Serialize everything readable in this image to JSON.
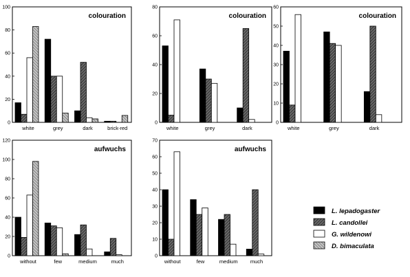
{
  "chart_data": [
    {
      "type": "bar",
      "title": "colouration",
      "categories": [
        "white",
        "grey",
        "dark",
        "brick-red"
      ],
      "ylim": [
        0,
        100
      ],
      "yticks": [
        0,
        20,
        40,
        60,
        80,
        100
      ],
      "series": [
        {
          "name": "L. lepadogaster",
          "values": [
            17,
            72,
            10,
            1
          ]
        },
        {
          "name": "L. candollei",
          "values": [
            7,
            40,
            52,
            1
          ]
        },
        {
          "name": "G. wildenowi",
          "values": [
            56,
            40,
            4,
            0
          ]
        },
        {
          "name": "D. bimaculata",
          "values": [
            83,
            8,
            3,
            6
          ]
        }
      ]
    },
    {
      "type": "bar",
      "title": "colouration",
      "categories": [
        "white",
        "grey",
        "dark"
      ],
      "ylim": [
        0,
        80
      ],
      "yticks": [
        0,
        20,
        40,
        60,
        80
      ],
      "series": [
        {
          "name": "L. lepadogaster",
          "values": [
            53,
            37,
            10
          ]
        },
        {
          "name": "L. candollei",
          "values": [
            5,
            30,
            65
          ]
        },
        {
          "name": "G. wildenowi",
          "values": [
            71,
            27,
            2
          ]
        }
      ]
    },
    {
      "type": "bar",
      "title": "colouration",
      "categories": [
        "white",
        "grey",
        "dark"
      ],
      "ylim": [
        0,
        60
      ],
      "yticks": [
        0,
        10,
        20,
        30,
        40,
        50,
        60
      ],
      "series": [
        {
          "name": "L. lepadogaster",
          "values": [
            37,
            47,
            16
          ]
        },
        {
          "name": "L. candollei",
          "values": [
            9,
            41,
            50
          ]
        },
        {
          "name": "G. wildenowi",
          "values": [
            56,
            40,
            4
          ]
        }
      ]
    },
    {
      "type": "bar",
      "title": "aufwuchs",
      "categories": [
        "without",
        "few",
        "medium",
        "much"
      ],
      "ylim": [
        0,
        120
      ],
      "yticks": [
        0,
        20,
        40,
        60,
        80,
        100,
        120
      ],
      "series": [
        {
          "name": "L. lepadogaster",
          "values": [
            40,
            34,
            22,
            4
          ]
        },
        {
          "name": "L. candollei",
          "values": [
            19,
            31,
            32,
            18
          ]
        },
        {
          "name": "G. wildenowi",
          "values": [
            63,
            29,
            7,
            1
          ]
        },
        {
          "name": "D. bimaculata",
          "values": [
            98,
            2,
            0,
            0
          ]
        }
      ]
    },
    {
      "type": "bar",
      "title": "aufwuchs",
      "categories": [
        "without",
        "few",
        "medium",
        "much"
      ],
      "ylim": [
        0,
        70
      ],
      "yticks": [
        0,
        10,
        20,
        30,
        40,
        50,
        60,
        70
      ],
      "series": [
        {
          "name": "L. lepadogaster",
          "values": [
            40,
            34,
            22,
            4
          ]
        },
        {
          "name": "L. candollei",
          "values": [
            10,
            25,
            25,
            40
          ]
        },
        {
          "name": "G. wildenowi",
          "values": [
            63,
            29,
            7,
            1
          ]
        }
      ]
    }
  ],
  "legend": {
    "placement": "bottom-right",
    "entries": [
      {
        "label": "L. lepadogaster",
        "fill": "solid-black"
      },
      {
        "label": "L. candollei",
        "fill": "dark-hatch"
      },
      {
        "label": "G. wildenowi",
        "fill": "white"
      },
      {
        "label": "D. bimaculata",
        "fill": "light-hatch"
      }
    ]
  },
  "colors": {
    "ink": "#000000",
    "background": "#ffffff",
    "hatch_dark": "#444444",
    "hatch_light": "#888888"
  }
}
